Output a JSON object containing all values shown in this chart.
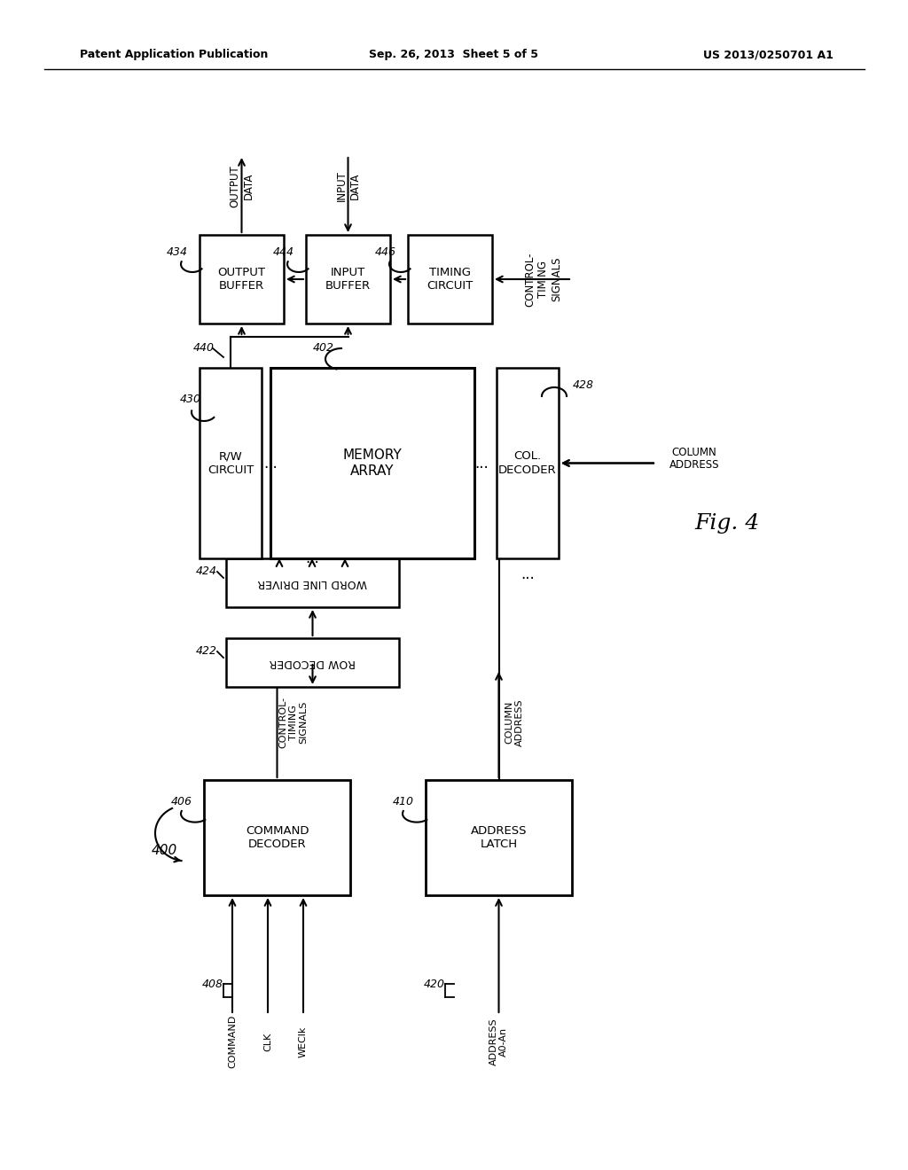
{
  "background_color": "#ffffff",
  "header_left": "Patent Application Publication",
  "header_center": "Sep. 26, 2013  Sheet 5 of 5",
  "header_right": "US 2013/0250701 A1",
  "text_color": "#000000",
  "line_color": "#000000"
}
